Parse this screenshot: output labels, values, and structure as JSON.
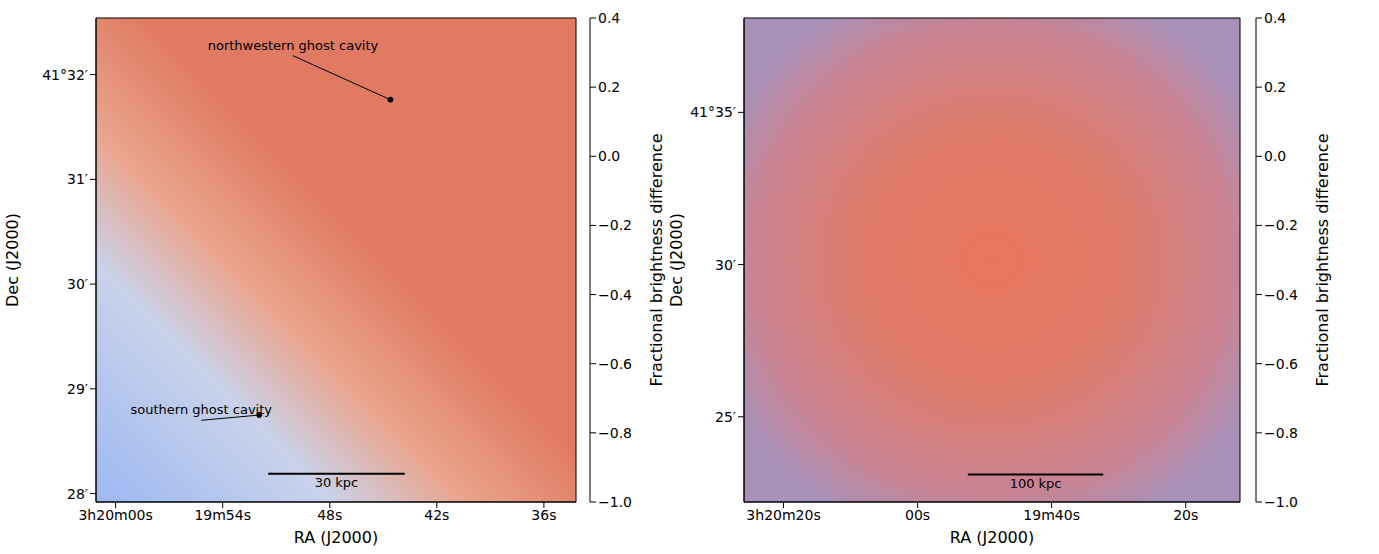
{
  "chart_data": [
    {
      "type": "image",
      "xlabel": "RA (J2000)",
      "ylabel": "Dec (J2000)",
      "xlim": [
        61.1,
        34.2
      ],
      "xticks": [
        {
          "value": 60,
          "label": "3h20m00s"
        },
        {
          "value": 54,
          "label": "19m54s"
        },
        {
          "value": 48,
          "label": "48s"
        },
        {
          "value": 42,
          "label": "42s"
        },
        {
          "value": 36,
          "label": "36s"
        }
      ],
      "ylim": [
        27.92,
        32.54
      ],
      "yticks": [
        {
          "value": 32,
          "label": "41°32′"
        },
        {
          "value": 31,
          "label": "31′"
        },
        {
          "value": 30,
          "label": "30′"
        },
        {
          "value": 29,
          "label": "29′"
        },
        {
          "value": 28,
          "label": "28′"
        }
      ],
      "annotations": [
        {
          "text": "northwestern ghost cavity",
          "xy": [
            44.6,
            31.76
          ],
          "xytext": [
            50.06,
            32.18
          ]
        },
        {
          "text": "southern ghost cavity",
          "xy": [
            51.95,
            28.75
          ],
          "xytext": [
            55.2,
            28.7
          ]
        }
      ],
      "scale_bar": {
        "label": "30 kpc",
        "x": [
          51.45,
          43.8
        ],
        "y": 28.19
      },
      "colorbar": {
        "label": "Fractional brightness difference",
        "range": [
          -1,
          0.4
        ],
        "ticks": [
          0.4,
          0.2,
          {
            "value": 0,
            "label": "0.0"
          },
          {
            "value": -0.2,
            "label": "−0.2"
          },
          {
            "value": -0.4,
            "label": "−0.4"
          },
          {
            "value": -0.6,
            "label": "−0.6"
          },
          {
            "value": -0.8,
            "label": "−0.8"
          },
          {
            "value": -1,
            "label": "−1.0"
          }
        ]
      }
    },
    {
      "type": "image",
      "xlabel": "RA (J2000)",
      "ylabel": "Dec (J2000)",
      "xlim": [
        85.9,
        11.9
      ],
      "xticks": [
        {
          "value": 80,
          "label": "3h20m20s"
        },
        {
          "value": 60,
          "label": "00s"
        },
        {
          "value": 40,
          "label": "19m40s"
        },
        {
          "value": 20,
          "label": "20s"
        }
      ],
      "ylim": [
        22.2,
        38.1
      ],
      "yticks": [
        {
          "value": 35,
          "label": "41°35′"
        },
        {
          "value": 30,
          "label": "30′"
        },
        {
          "value": 25,
          "label": "25′"
        }
      ],
      "annotations": [],
      "scale_bar": {
        "label": "100 kpc",
        "x": [
          52.5,
          32.3
        ],
        "y": 23.1
      },
      "colorbar": {
        "label": "Fractional brightness difference",
        "range": [
          -1,
          0.4
        ],
        "ticks": [
          0.4,
          0.2,
          {
            "value": 0,
            "label": "0.0"
          },
          {
            "value": -0.2,
            "label": "−0.2"
          },
          {
            "value": -0.4,
            "label": "−0.4"
          },
          {
            "value": -0.6,
            "label": "−0.6"
          },
          {
            "value": -0.8,
            "label": "−0.8"
          },
          {
            "value": -1,
            "label": "−1.0"
          }
        ]
      }
    }
  ]
}
